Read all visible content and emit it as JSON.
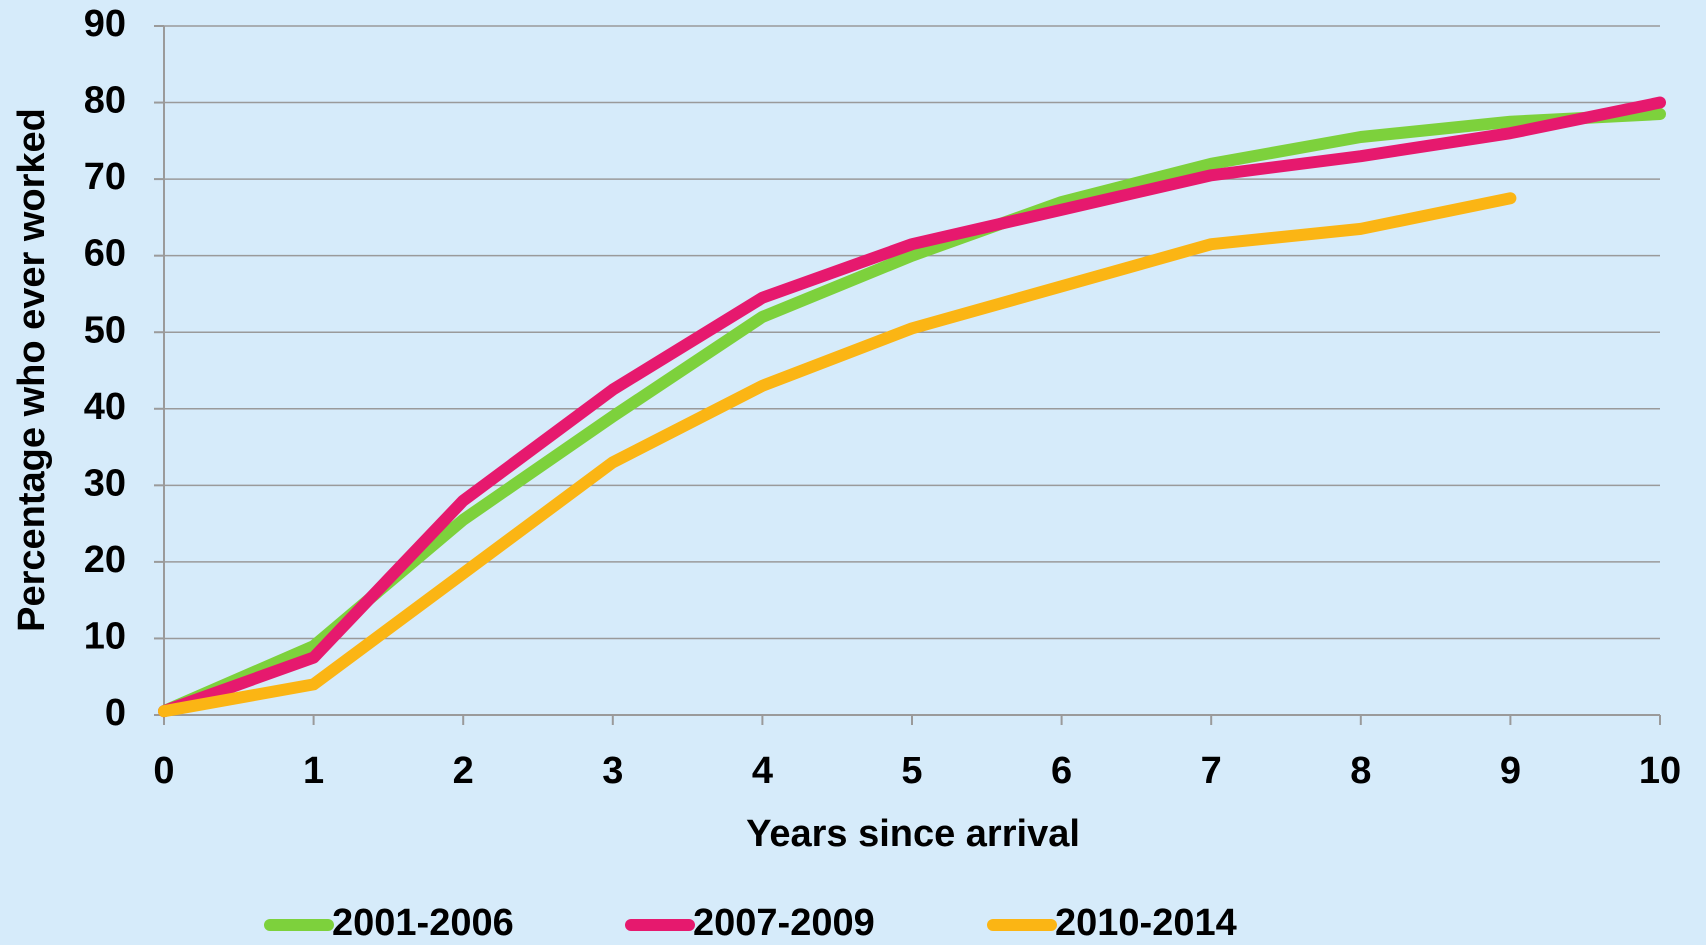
{
  "chart_data": {
    "type": "line",
    "x_label": "Years since arrival",
    "y_label": "Percentage who ever worked",
    "x": [
      0,
      1,
      2,
      3,
      4,
      5,
      6,
      7,
      8,
      9,
      10
    ],
    "series": [
      {
        "name": "2001-2006",
        "color": "#7dd13c",
        "values": [
          0.5,
          9,
          25.5,
          39,
          52,
          60,
          67,
          72,
          75.5,
          77.5,
          78.5
        ]
      },
      {
        "name": "2007-2009",
        "color": "#e6196e",
        "values": [
          0.5,
          7.5,
          28,
          42.5,
          54.5,
          61.5,
          66,
          70.5,
          73,
          76,
          80
        ]
      },
      {
        "name": "2010-2014",
        "color": "#fbb514",
        "values": [
          0.5,
          4,
          18.5,
          33,
          43,
          50.5,
          56,
          61.5,
          63.5,
          67.5,
          null
        ]
      }
    ],
    "xlim": [
      0,
      10
    ],
    "xticks": [
      0,
      1,
      2,
      3,
      4,
      5,
      6,
      7,
      8,
      9,
      10
    ],
    "ylim": [
      0,
      90
    ],
    "yticks": [
      0,
      10,
      20,
      30,
      40,
      50,
      60,
      70,
      80,
      90
    ],
    "grid": true,
    "legend": "bottom"
  }
}
